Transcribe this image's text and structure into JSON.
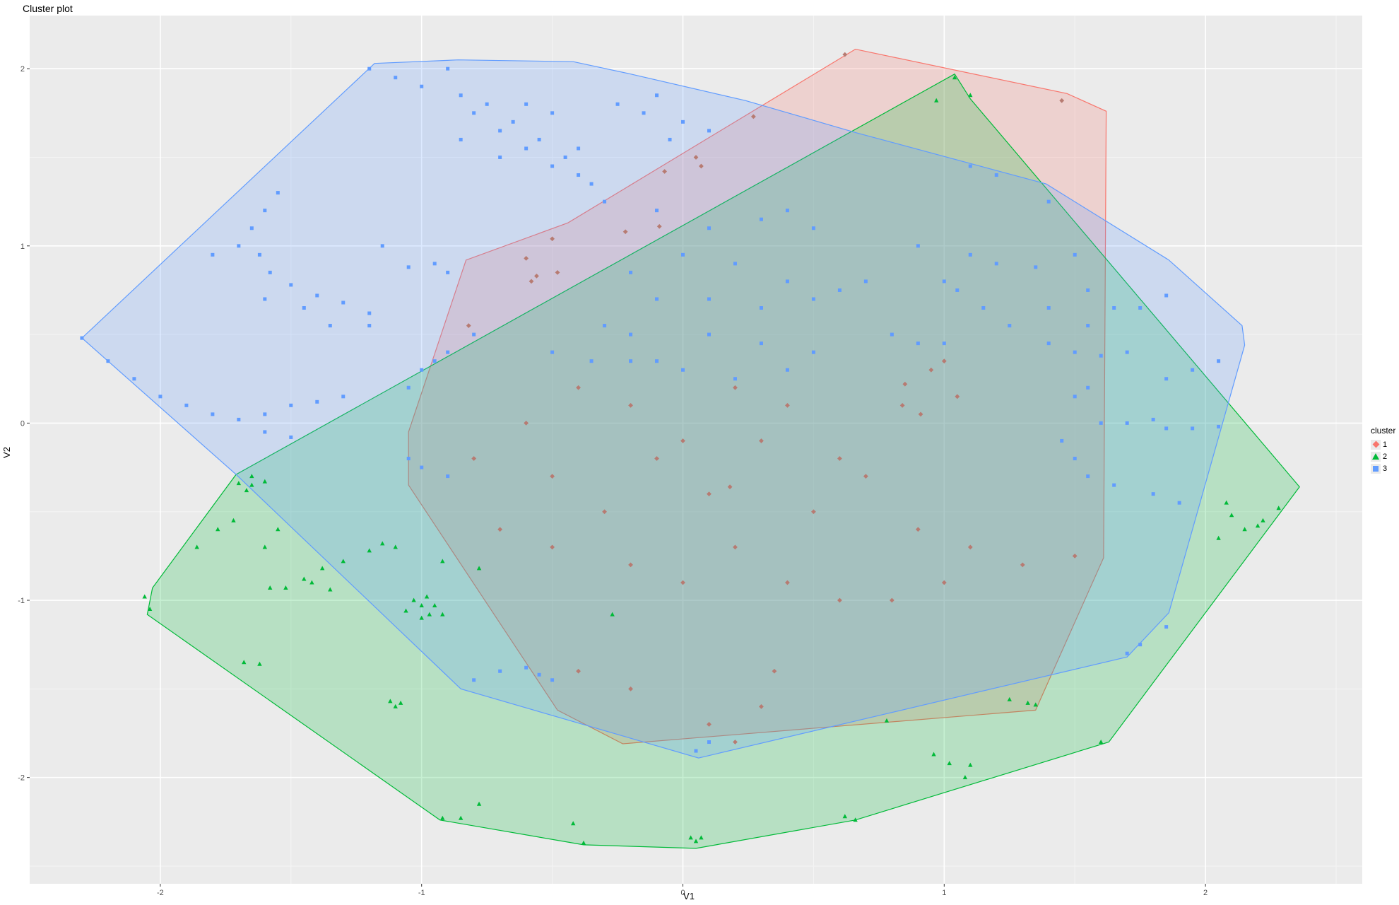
{
  "chart_data": {
    "type": "scatter",
    "title": "Cluster plot",
    "xlabel": "V1",
    "ylabel": "V2",
    "xlim": [
      -2.5,
      2.6
    ],
    "ylim": [
      -2.6,
      2.3
    ],
    "xticks": [
      -2,
      -1,
      0,
      1,
      2
    ],
    "yticks": [
      -2,
      -1,
      0,
      1,
      2
    ],
    "grid": true,
    "legend": {
      "title": "cluster",
      "position": "right",
      "entries": [
        "1",
        "2",
        "3"
      ]
    },
    "series": [
      {
        "name": "1",
        "color": "#F8766D",
        "point_color": "#B77B72",
        "hull": [
          [
            0.66,
            2.11
          ],
          [
            1.47,
            1.86
          ],
          [
            1.62,
            1.76
          ],
          [
            1.61,
            -0.76
          ],
          [
            1.35,
            -1.62
          ],
          [
            -0.23,
            -1.81
          ],
          [
            -0.48,
            -1.62
          ],
          [
            -1.05,
            -0.35
          ],
          [
            -1.05,
            -0.05
          ],
          [
            -0.83,
            0.92
          ],
          [
            -0.44,
            1.13
          ]
        ],
        "points": [
          [
            0.62,
            2.08
          ],
          [
            1.45,
            1.82
          ],
          [
            0.27,
            1.73
          ],
          [
            0.07,
            1.45
          ],
          [
            -0.07,
            1.42
          ],
          [
            0.05,
            1.5
          ],
          [
            -0.5,
            1.04
          ],
          [
            -0.6,
            0.93
          ],
          [
            -0.56,
            0.83
          ],
          [
            -0.48,
            0.85
          ],
          [
            -0.58,
            0.8
          ],
          [
            -0.22,
            1.08
          ],
          [
            -0.09,
            1.11
          ],
          [
            -0.82,
            0.55
          ],
          [
            0.95,
            0.3
          ],
          [
            0.85,
            0.22
          ],
          [
            1.05,
            0.15
          ],
          [
            0.91,
            0.05
          ],
          [
            0.84,
            0.1
          ],
          [
            1.0,
            0.35
          ],
          [
            -0.5,
            -0.3
          ],
          [
            -0.3,
            -0.5
          ],
          [
            -0.1,
            -0.2
          ],
          [
            0.1,
            -0.4
          ],
          [
            0.3,
            -0.1
          ],
          [
            0.5,
            -0.5
          ],
          [
            0.7,
            -0.3
          ],
          [
            0.9,
            -0.6
          ],
          [
            1.1,
            -0.7
          ],
          [
            1.3,
            -0.8
          ],
          [
            1.5,
            -0.75
          ],
          [
            -0.6,
            0.0
          ],
          [
            -0.4,
            0.2
          ],
          [
            -0.2,
            0.1
          ],
          [
            0.0,
            -0.1
          ],
          [
            0.2,
            0.2
          ],
          [
            0.4,
            0.1
          ],
          [
            0.6,
            -0.2
          ],
          [
            -0.2,
            -0.8
          ],
          [
            0.0,
            -0.9
          ],
          [
            0.2,
            -0.7
          ],
          [
            0.4,
            -0.9
          ],
          [
            0.6,
            -1.0
          ],
          [
            0.8,
            -1.0
          ],
          [
            1.0,
            -0.9
          ],
          [
            -0.4,
            -1.4
          ],
          [
            -0.2,
            -1.5
          ],
          [
            0.1,
            -1.7
          ],
          [
            0.2,
            -1.8
          ],
          [
            0.3,
            -1.6
          ],
          [
            0.35,
            -1.4
          ],
          [
            -0.7,
            -0.6
          ],
          [
            -0.8,
            -0.2
          ],
          [
            -0.5,
            -0.7
          ],
          [
            0.18,
            -0.36
          ]
        ]
      },
      {
        "name": "2",
        "color": "#00BA38",
        "point_color": "#00BA38",
        "hull": [
          [
            1.04,
            1.97
          ],
          [
            1.1,
            1.83
          ],
          [
            2.36,
            -0.36
          ],
          [
            1.63,
            -1.8
          ],
          [
            0.66,
            -2.24
          ],
          [
            0.05,
            -2.4
          ],
          [
            -0.38,
            -2.38
          ],
          [
            -0.93,
            -2.24
          ],
          [
            -2.05,
            -1.08
          ],
          [
            -2.03,
            -0.93
          ],
          [
            -1.71,
            -0.29
          ]
        ],
        "points": [
          [
            1.04,
            1.95
          ],
          [
            0.97,
            1.82
          ],
          [
            1.1,
            1.85
          ],
          [
            -1.65,
            -0.35
          ],
          [
            -1.7,
            -0.34
          ],
          [
            -1.6,
            -0.33
          ],
          [
            -1.65,
            -0.3
          ],
          [
            -1.67,
            -0.38
          ],
          [
            -1.72,
            -0.55
          ],
          [
            -1.55,
            -0.6
          ],
          [
            -1.6,
            -0.7
          ],
          [
            -1.45,
            -0.88
          ],
          [
            -1.38,
            -0.82
          ],
          [
            -1.3,
            -0.78
          ],
          [
            -1.2,
            -0.72
          ],
          [
            -1.15,
            -0.68
          ],
          [
            -1.1,
            -0.7
          ],
          [
            -1.52,
            -0.93
          ],
          [
            -1.58,
            -0.93
          ],
          [
            -1.42,
            -0.9
          ],
          [
            -1.35,
            -0.94
          ],
          [
            -0.92,
            -0.78
          ],
          [
            -0.78,
            -0.82
          ],
          [
            -1.0,
            -1.03
          ],
          [
            -0.95,
            -1.03
          ],
          [
            -1.03,
            -1.0
          ],
          [
            -0.98,
            -0.98
          ],
          [
            -1.06,
            -1.06
          ],
          [
            -0.97,
            -1.08
          ],
          [
            -1.0,
            -1.1
          ],
          [
            -0.92,
            -1.08
          ],
          [
            -0.27,
            -1.08
          ],
          [
            -1.62,
            -1.36
          ],
          [
            -1.68,
            -1.35
          ],
          [
            -1.12,
            -1.57
          ],
          [
            -1.08,
            -1.58
          ],
          [
            -1.1,
            -1.6
          ],
          [
            -0.92,
            -2.23
          ],
          [
            -0.85,
            -2.23
          ],
          [
            -0.78,
            -2.15
          ],
          [
            -0.42,
            -2.26
          ],
          [
            -0.38,
            -2.37
          ],
          [
            0.03,
            -2.34
          ],
          [
            0.07,
            -2.34
          ],
          [
            0.05,
            -2.36
          ],
          [
            0.62,
            -2.22
          ],
          [
            0.66,
            -2.24
          ],
          [
            0.78,
            -1.68
          ],
          [
            0.96,
            -1.87
          ],
          [
            1.02,
            -1.92
          ],
          [
            1.08,
            -2.0
          ],
          [
            1.1,
            -1.93
          ],
          [
            1.35,
            -1.59
          ],
          [
            1.32,
            -1.58
          ],
          [
            1.25,
            -1.56
          ],
          [
            -2.06,
            -0.98
          ],
          [
            -2.04,
            -1.05
          ],
          [
            2.08,
            -0.45
          ],
          [
            2.1,
            -0.52
          ],
          [
            2.15,
            -0.6
          ],
          [
            2.22,
            -0.55
          ],
          [
            2.28,
            -0.48
          ],
          [
            2.2,
            -0.58
          ],
          [
            2.05,
            -0.65
          ],
          [
            1.6,
            -1.8
          ],
          [
            -1.78,
            -0.6
          ],
          [
            -1.86,
            -0.7
          ]
        ]
      },
      {
        "name": "3",
        "color": "#619CFF",
        "point_color": "#619CFF",
        "hull": [
          [
            -1.18,
            2.03
          ],
          [
            -0.86,
            2.05
          ],
          [
            -0.42,
            2.04
          ],
          [
            -0.2,
            1.97
          ],
          [
            0.24,
            1.82
          ],
          [
            0.66,
            1.64
          ],
          [
            1.39,
            1.35
          ],
          [
            1.86,
            0.92
          ],
          [
            2.14,
            0.55
          ],
          [
            2.15,
            0.44
          ],
          [
            1.86,
            -1.07
          ],
          [
            1.7,
            -1.32
          ],
          [
            0.06,
            -1.89
          ],
          [
            -0.85,
            -1.5
          ],
          [
            -1.71,
            -0.29
          ],
          [
            -2.3,
            0.48
          ]
        ],
        "points": [
          [
            -1.2,
            2.0
          ],
          [
            -1.1,
            1.95
          ],
          [
            -1.0,
            1.9
          ],
          [
            -0.9,
            2.0
          ],
          [
            -0.85,
            1.85
          ],
          [
            -0.8,
            1.75
          ],
          [
            -0.75,
            1.8
          ],
          [
            -0.7,
            1.65
          ],
          [
            -0.65,
            1.7
          ],
          [
            -0.6,
            1.55
          ],
          [
            -0.55,
            1.6
          ],
          [
            -0.5,
            1.45
          ],
          [
            -0.45,
            1.5
          ],
          [
            -0.4,
            1.4
          ],
          [
            -0.35,
            1.35
          ],
          [
            -0.3,
            1.25
          ],
          [
            -0.25,
            1.8
          ],
          [
            -0.15,
            1.75
          ],
          [
            -0.1,
            1.85
          ],
          [
            -0.05,
            1.6
          ],
          [
            0.0,
            1.7
          ],
          [
            0.1,
            1.65
          ],
          [
            -0.6,
            1.8
          ],
          [
            -0.5,
            1.75
          ],
          [
            -0.4,
            1.55
          ],
          [
            -0.7,
            1.5
          ],
          [
            -0.85,
            1.6
          ],
          [
            -1.6,
            1.2
          ],
          [
            -1.65,
            1.1
          ],
          [
            -1.62,
            0.95
          ],
          [
            -1.58,
            0.85
          ],
          [
            -1.5,
            0.78
          ],
          [
            -1.4,
            0.72
          ],
          [
            -1.3,
            0.68
          ],
          [
            -1.2,
            0.62
          ],
          [
            -1.7,
            1.0
          ],
          [
            -1.6,
            0.7
          ],
          [
            -1.45,
            0.65
          ],
          [
            -1.35,
            0.55
          ],
          [
            -1.2,
            0.55
          ],
          [
            -1.8,
            0.95
          ],
          [
            -1.55,
            1.3
          ],
          [
            -1.15,
            1.0
          ],
          [
            -1.05,
            0.88
          ],
          [
            -0.95,
            0.9
          ],
          [
            -0.9,
            0.85
          ],
          [
            -2.3,
            0.48
          ],
          [
            -2.2,
            0.35
          ],
          [
            -2.1,
            0.25
          ],
          [
            -2.0,
            0.15
          ],
          [
            -1.9,
            0.1
          ],
          [
            -1.8,
            0.05
          ],
          [
            -1.7,
            0.02
          ],
          [
            -1.6,
            0.05
          ],
          [
            -1.5,
            0.1
          ],
          [
            -1.4,
            0.12
          ],
          [
            -1.3,
            0.15
          ],
          [
            -1.6,
            -0.05
          ],
          [
            -1.5,
            -0.08
          ],
          [
            -0.1,
            1.2
          ],
          [
            0.1,
            1.1
          ],
          [
            0.3,
            1.15
          ],
          [
            0.4,
            1.2
          ],
          [
            0.5,
            1.1
          ],
          [
            0.0,
            0.95
          ],
          [
            0.2,
            0.9
          ],
          [
            -0.2,
            0.85
          ],
          [
            -0.1,
            0.7
          ],
          [
            0.1,
            0.7
          ],
          [
            0.3,
            0.65
          ],
          [
            0.4,
            0.8
          ],
          [
            0.5,
            0.7
          ],
          [
            0.6,
            0.75
          ],
          [
            0.7,
            0.8
          ],
          [
            -0.3,
            0.55
          ],
          [
            -0.2,
            0.5
          ],
          [
            0.1,
            0.5
          ],
          [
            0.3,
            0.45
          ],
          [
            0.5,
            0.4
          ],
          [
            0.4,
            0.3
          ],
          [
            0.2,
            0.25
          ],
          [
            0.0,
            0.3
          ],
          [
            -0.1,
            0.35
          ],
          [
            0.8,
            0.5
          ],
          [
            0.9,
            0.45
          ],
          [
            1.0,
            0.45
          ],
          [
            1.1,
            1.45
          ],
          [
            1.2,
            1.4
          ],
          [
            1.4,
            1.25
          ],
          [
            0.9,
            1.0
          ],
          [
            1.1,
            0.95
          ],
          [
            1.2,
            0.9
          ],
          [
            1.35,
            0.88
          ],
          [
            1.0,
            0.8
          ],
          [
            1.05,
            0.75
          ],
          [
            1.15,
            0.65
          ],
          [
            1.25,
            0.55
          ],
          [
            1.4,
            0.65
          ],
          [
            1.55,
            0.55
          ],
          [
            1.5,
            0.95
          ],
          [
            1.55,
            0.75
          ],
          [
            1.65,
            0.65
          ],
          [
            1.75,
            0.65
          ],
          [
            1.85,
            0.72
          ],
          [
            1.4,
            0.45
          ],
          [
            1.5,
            0.4
          ],
          [
            1.6,
            0.38
          ],
          [
            1.7,
            0.4
          ],
          [
            1.85,
            0.25
          ],
          [
            1.95,
            0.3
          ],
          [
            2.05,
            0.35
          ],
          [
            1.5,
            0.15
          ],
          [
            1.55,
            0.2
          ],
          [
            1.6,
            0.0
          ],
          [
            1.7,
            0.0
          ],
          [
            1.8,
            0.02
          ],
          [
            1.85,
            -0.03
          ],
          [
            1.95,
            -0.03
          ],
          [
            2.05,
            -0.02
          ],
          [
            1.45,
            -0.1
          ],
          [
            1.5,
            -0.2
          ],
          [
            1.55,
            -0.3
          ],
          [
            1.65,
            -0.35
          ],
          [
            1.8,
            -0.4
          ],
          [
            1.9,
            -0.45
          ],
          [
            1.7,
            -1.3
          ],
          [
            1.75,
            -1.25
          ],
          [
            1.85,
            -1.15
          ],
          [
            -1.05,
            0.2
          ],
          [
            -1.0,
            0.3
          ],
          [
            -0.95,
            0.35
          ],
          [
            -0.9,
            0.4
          ],
          [
            -0.8,
            0.5
          ],
          [
            -1.05,
            -0.2
          ],
          [
            -1.0,
            -0.25
          ],
          [
            -0.9,
            -0.3
          ],
          [
            -0.8,
            -1.45
          ],
          [
            -0.7,
            -1.4
          ],
          [
            -0.6,
            -1.38
          ],
          [
            -0.55,
            -1.42
          ],
          [
            -0.5,
            -1.45
          ],
          [
            0.05,
            -1.85
          ],
          [
            0.1,
            -1.8
          ],
          [
            -0.5,
            0.4
          ],
          [
            -0.35,
            0.35
          ],
          [
            -0.2,
            0.35
          ]
        ]
      }
    ]
  }
}
